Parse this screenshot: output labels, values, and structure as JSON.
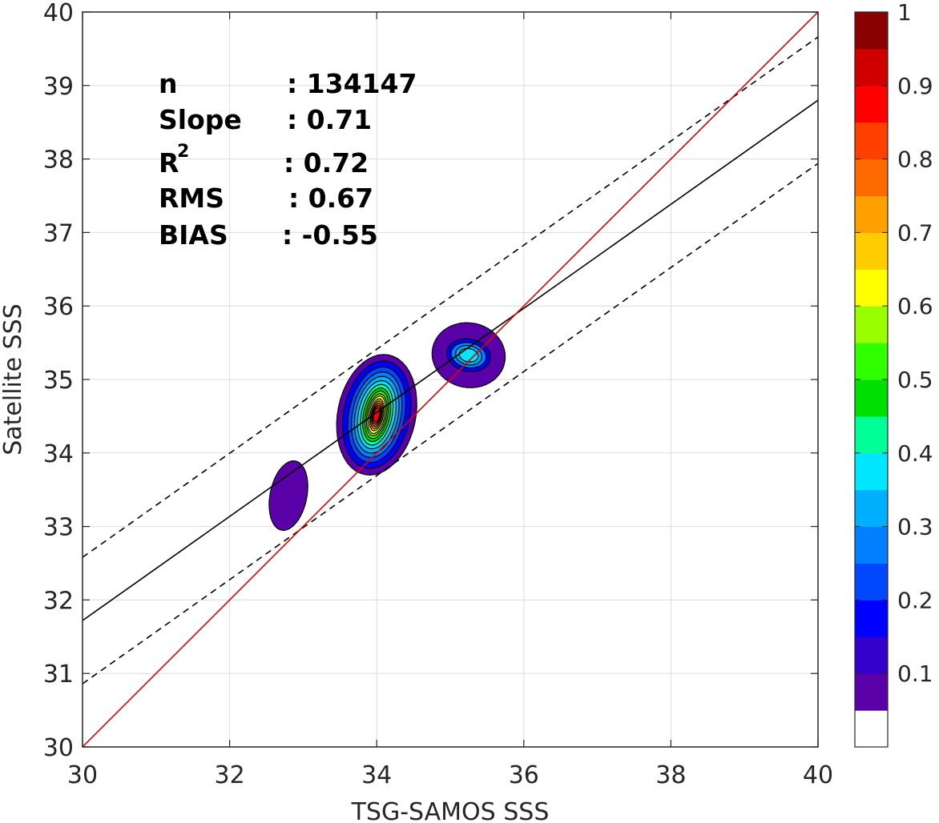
{
  "chart_data": {
    "type": "contour",
    "xlabel": "TSG-SAMOS SSS",
    "ylabel": "Satellite SSS",
    "xlim": [
      30,
      40
    ],
    "ylim": [
      30,
      40
    ],
    "xticks": [
      "30",
      "32",
      "34",
      "36",
      "38",
      "40"
    ],
    "yticks": [
      "30",
      "31",
      "32",
      "33",
      "34",
      "35",
      "36",
      "37",
      "38",
      "39",
      "40"
    ],
    "grid": true,
    "stats": {
      "n_label": "n",
      "n_value": ": 134147",
      "slope_label": "Slope",
      "slope_value": ": 0.71",
      "r2_label": "R",
      "r2_sup": "2",
      "r2_value": ": 0.72",
      "rms_label": "RMS",
      "rms_value": ": 0.67",
      "bias_label": "BIAS",
      "bias_value": ": -0.55"
    },
    "lines": {
      "one_to_one": {
        "color": "#e00000",
        "points": [
          [
            30,
            30
          ],
          [
            40,
            40
          ]
        ]
      },
      "fit": {
        "color": "#000000",
        "points": [
          [
            30,
            31.72
          ],
          [
            40,
            38.8
          ]
        ]
      },
      "fit_upper": {
        "color": "#000000",
        "dash": true,
        "points": [
          [
            30,
            32.58
          ],
          [
            40,
            39.66
          ]
        ]
      },
      "fit_lower": {
        "color": "#000000",
        "dash": true,
        "points": [
          [
            30,
            30.86
          ],
          [
            40,
            37.94
          ]
        ]
      }
    },
    "density_clusters": [
      {
        "cx": 32.8,
        "cy": 33.42,
        "levels": [
          [
            0.25,
            0.48,
            0.05
          ]
        ]
      },
      {
        "cx": 35.25,
        "cy": 35.33,
        "levels": [
          [
            0.5,
            0.44,
            0.05
          ],
          [
            0.3,
            0.22,
            0.15
          ],
          [
            0.24,
            0.17,
            0.25
          ],
          [
            0.18,
            0.13,
            0.3
          ],
          [
            0.13,
            0.09,
            0.35
          ]
        ]
      },
      {
        "cx": 34.0,
        "cy": 34.52,
        "levels": [
          [
            0.53,
            0.83,
            0.05
          ],
          [
            0.45,
            0.74,
            0.15
          ],
          [
            0.38,
            0.66,
            0.2
          ],
          [
            0.33,
            0.59,
            0.25
          ],
          [
            0.29,
            0.53,
            0.3
          ],
          [
            0.25,
            0.47,
            0.35
          ],
          [
            0.21,
            0.42,
            0.4
          ],
          [
            0.18,
            0.37,
            0.45
          ],
          [
            0.15,
            0.33,
            0.5
          ],
          [
            0.13,
            0.29,
            0.55
          ],
          [
            0.11,
            0.26,
            0.6
          ],
          [
            0.09,
            0.22,
            0.65
          ],
          [
            0.075,
            0.19,
            0.7
          ],
          [
            0.06,
            0.16,
            0.75
          ],
          [
            0.05,
            0.13,
            0.8
          ],
          [
            0.04,
            0.1,
            0.85
          ]
        ]
      }
    ],
    "colorbar": {
      "range": [
        0,
        1
      ],
      "ticks": [
        "1",
        "0.9",
        "0.8",
        "0.7",
        "0.6",
        "0.5",
        "0.4",
        "0.3",
        "0.2",
        "0.1"
      ],
      "tick_values": [
        1,
        0.9,
        0.8,
        0.7,
        0.6,
        0.5,
        0.4,
        0.3,
        0.2,
        0.1
      ],
      "colors": [
        "#ffffff",
        "#5a00a8",
        "#3300cc",
        "#0000ff",
        "#0047ff",
        "#0080ff",
        "#00b0ff",
        "#00e6ff",
        "#00ff99",
        "#00e000",
        "#30ff00",
        "#99ff00",
        "#ffff00",
        "#ffcc00",
        "#ffa000",
        "#ff6a00",
        "#ff4000",
        "#ff0000",
        "#d00000",
        "#8b0000"
      ]
    }
  }
}
